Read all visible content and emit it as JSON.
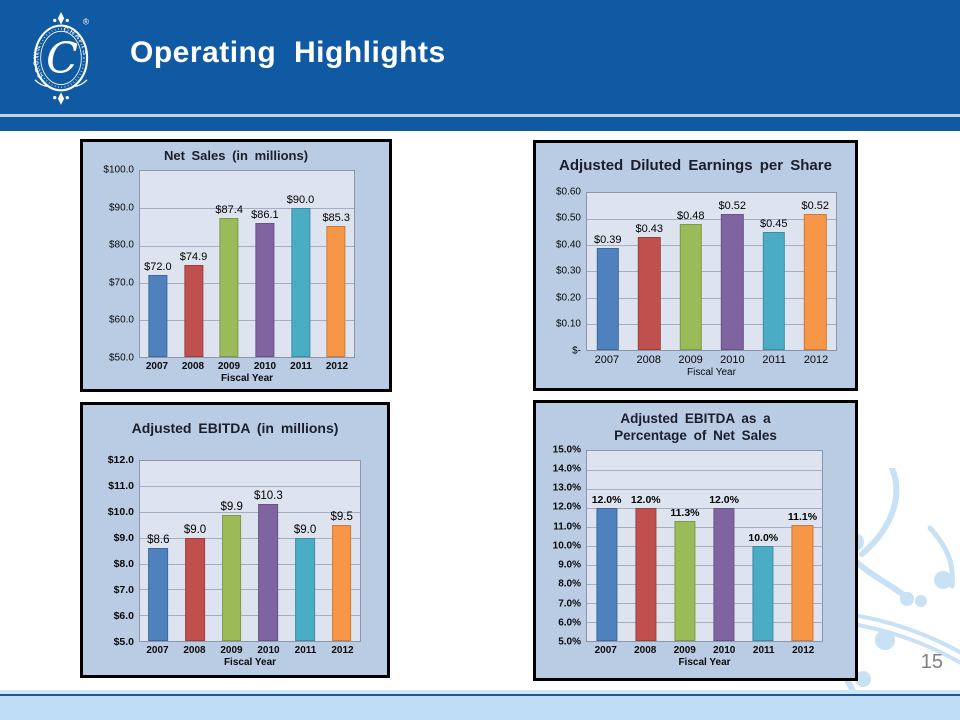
{
  "slide": {
    "title": "Operating Highlights",
    "page_number": "15",
    "logo": {
      "brand_top": "CROWN",
      "brand_bottom": "CRAFTS",
      "monogram": "C",
      "registered_mark": "®"
    }
  },
  "colors": {
    "header_blue": "#0F5AA3",
    "silver": "#C9D1D8",
    "footer_blue": "#BFDDF4",
    "footer_navy": "#1C5796",
    "box_bg": "#B9CCE3",
    "plot_bg": "#DEE4EF",
    "gridline": "#A3AFC0",
    "page_gray": "#7F7F7F",
    "watermark_blue": "#C8E1F4",
    "series": [
      "#4E81BD",
      "#C0504D",
      "#9BBB59",
      "#8064A2",
      "#4BACC6",
      "#F79646"
    ]
  },
  "chart_data": [
    {
      "type": "bar",
      "title": "Net Sales (in millions)",
      "categories": [
        "2007",
        "2008",
        "2009",
        "2010",
        "2011",
        "2012"
      ],
      "values": [
        72.0,
        74.9,
        87.4,
        86.1,
        90.0,
        85.3
      ],
      "labels": [
        "$72.0",
        "$74.9",
        "$87.4",
        "$86.1",
        "$90.0",
        "$85.3"
      ],
      "yticks": [
        "$100.0",
        "$90.0",
        "$80.0",
        "$70.0",
        "$60.0",
        "$50.0"
      ],
      "ylim": [
        50,
        100
      ],
      "xlabel": "Fiscal Year",
      "grid": true,
      "legend": "none"
    },
    {
      "type": "bar",
      "title": "Adjusted Diluted Earnings per Share",
      "categories": [
        "2007",
        "2008",
        "2009",
        "2010",
        "2011",
        "2012"
      ],
      "values": [
        0.39,
        0.43,
        0.48,
        0.52,
        0.45,
        0.52
      ],
      "labels": [
        "$0.39",
        "$0.43",
        "$0.48",
        "$0.52",
        "$0.45",
        "$0.52"
      ],
      "yticks": [
        "$0.60",
        "$0.50",
        "$0.40",
        "$0.30",
        "$0.20",
        "$0.10",
        "$-"
      ],
      "ylim": [
        0,
        0.6
      ],
      "xlabel": "Fiscal Year",
      "grid": true,
      "legend": "none"
    },
    {
      "type": "bar",
      "title": "Adjusted EBITDA (in millions)",
      "categories": [
        "2007",
        "2008",
        "2009",
        "2010",
        "2011",
        "2012"
      ],
      "values": [
        8.6,
        9.0,
        9.9,
        10.3,
        9.0,
        9.5
      ],
      "labels": [
        "$8.6",
        "$9.0",
        "$9.9",
        "$10.3",
        "$9.0",
        "$9.5"
      ],
      "yticks": [
        "$12.0",
        "$11.0",
        "$10.0",
        "$9.0",
        "$8.0",
        "$7.0",
        "$6.0",
        "$5.0"
      ],
      "ylim": [
        5,
        12
      ],
      "xlabel": "Fiscal Year",
      "grid": true,
      "legend": "none"
    },
    {
      "type": "bar",
      "title": "Adjusted EBITDA as a\nPercentage of Net Sales",
      "categories": [
        "2007",
        "2008",
        "2009",
        "2010",
        "2011",
        "2012"
      ],
      "values": [
        12.0,
        12.0,
        11.3,
        12.0,
        10.0,
        11.1
      ],
      "labels": [
        "12.0%",
        "12.0%",
        "11.3%",
        "12.0%",
        "10.0%",
        "11.1%"
      ],
      "yticks": [
        "15.0%",
        "14.0%",
        "13.0%",
        "12.0%",
        "11.0%",
        "10.0%",
        "9.0%",
        "8.0%",
        "7.0%",
        "6.0%",
        "5.0%"
      ],
      "ylim": [
        5,
        15
      ],
      "xlabel": "Fiscal Year",
      "grid": true,
      "legend": "none"
    }
  ]
}
